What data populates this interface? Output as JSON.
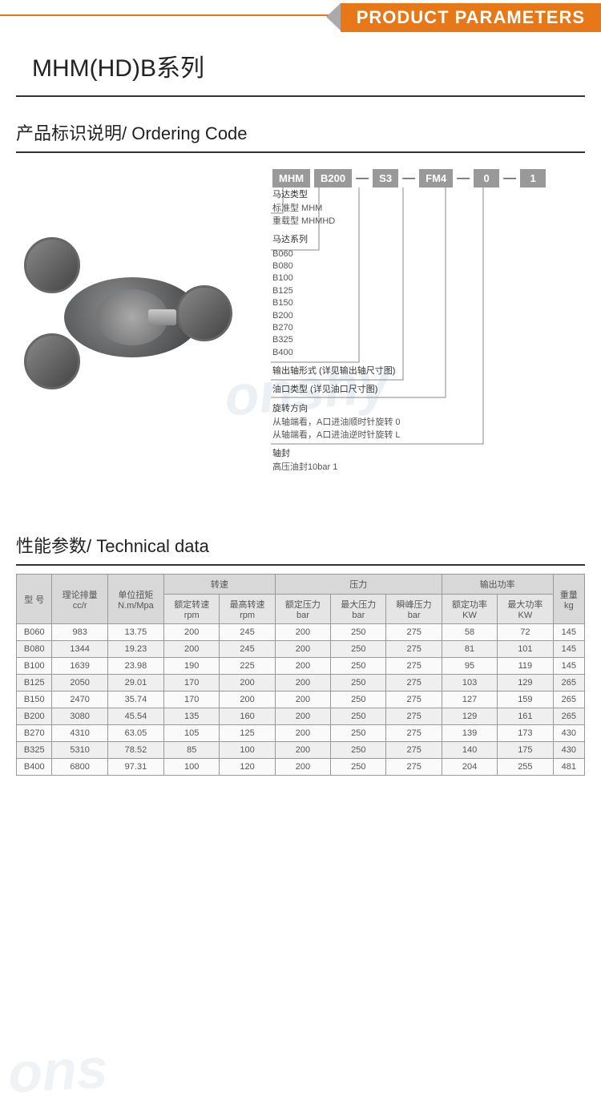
{
  "banner_title": "PRODUCT PARAMETERS",
  "series_title": "MHM(HD)B系列",
  "ordering_title": "产品标识说明/ Ordering Code",
  "tech_title": "性能参数/ Technical data",
  "code_boxes": [
    "MHM",
    "B200",
    "S3",
    "FM4",
    "0",
    "1"
  ],
  "code_sections": [
    {
      "h": "马达类型",
      "lines": [
        "标准型  MHM",
        "重载型  MHMHD"
      ]
    },
    {
      "h": "马达系列",
      "lines": [
        "B060",
        "B080",
        "B100",
        "B125",
        "B150",
        "B200",
        "B270",
        "B325",
        "B400"
      ]
    },
    {
      "h": "输出轴形式 (详见输出轴尺寸图)",
      "lines": []
    },
    {
      "h": "油口类型 (详见油口尺寸图)",
      "lines": []
    },
    {
      "h": "旋转方向",
      "lines": [
        "从轴端看，A口进油顺时针旋转  0",
        "从轴端看，A口进油逆时针旋转  L"
      ]
    },
    {
      "h": "轴封",
      "lines": [
        "高压油封10bar   1"
      ]
    }
  ],
  "table": {
    "header_groups": [
      {
        "label": "型 号",
        "sub": [],
        "rowspan": 2
      },
      {
        "label": "理论排量",
        "unit": "cc/r",
        "rowspan": 2
      },
      {
        "label": "单位扭矩",
        "unit": "N.m/Mpa",
        "rowspan": 2
      },
      {
        "label": "转速",
        "sub": [
          {
            "l": "额定转速",
            "u": "rpm"
          },
          {
            "l": "最高转速",
            "u": "rpm"
          }
        ]
      },
      {
        "label": "压力",
        "sub": [
          {
            "l": "额定压力",
            "u": "bar"
          },
          {
            "l": "最大压力",
            "u": "bar"
          },
          {
            "l": "瞬峰压力",
            "u": "bar"
          }
        ]
      },
      {
        "label": "输出功率",
        "sub": [
          {
            "l": "额定功率",
            "u": "KW"
          },
          {
            "l": "最大功率",
            "u": "KW"
          }
        ]
      },
      {
        "label": "重量",
        "unit": "kg",
        "rowspan": 2
      }
    ],
    "rows": [
      [
        "B060",
        "983",
        "13.75",
        "200",
        "245",
        "200",
        "250",
        "275",
        "58",
        "72",
        "145"
      ],
      [
        "B080",
        "1344",
        "19.23",
        "200",
        "245",
        "200",
        "250",
        "275",
        "81",
        "101",
        "145"
      ],
      [
        "B100",
        "1639",
        "23.98",
        "190",
        "225",
        "200",
        "250",
        "275",
        "95",
        "119",
        "145"
      ],
      [
        "B125",
        "2050",
        "29.01",
        "170",
        "200",
        "200",
        "250",
        "275",
        "103",
        "129",
        "265"
      ],
      [
        "B150",
        "2470",
        "35.74",
        "170",
        "200",
        "200",
        "250",
        "275",
        "127",
        "159",
        "265"
      ],
      [
        "B200",
        "3080",
        "45.54",
        "135",
        "160",
        "200",
        "250",
        "275",
        "129",
        "161",
        "265"
      ],
      [
        "B270",
        "4310",
        "63.05",
        "105",
        "125",
        "200",
        "250",
        "275",
        "139",
        "173",
        "430"
      ],
      [
        "B325",
        "5310",
        "78.52",
        "85",
        "100",
        "200",
        "250",
        "275",
        "140",
        "175",
        "430"
      ],
      [
        "B400",
        "6800",
        "97.31",
        "100",
        "120",
        "200",
        "250",
        "275",
        "204",
        "255",
        "481"
      ]
    ]
  },
  "colors": {
    "accent": "#e67817",
    "header_bg": "#e5e5e5",
    "row_odd": "#fafafa",
    "row_even": "#efefef",
    "border": "#999"
  }
}
